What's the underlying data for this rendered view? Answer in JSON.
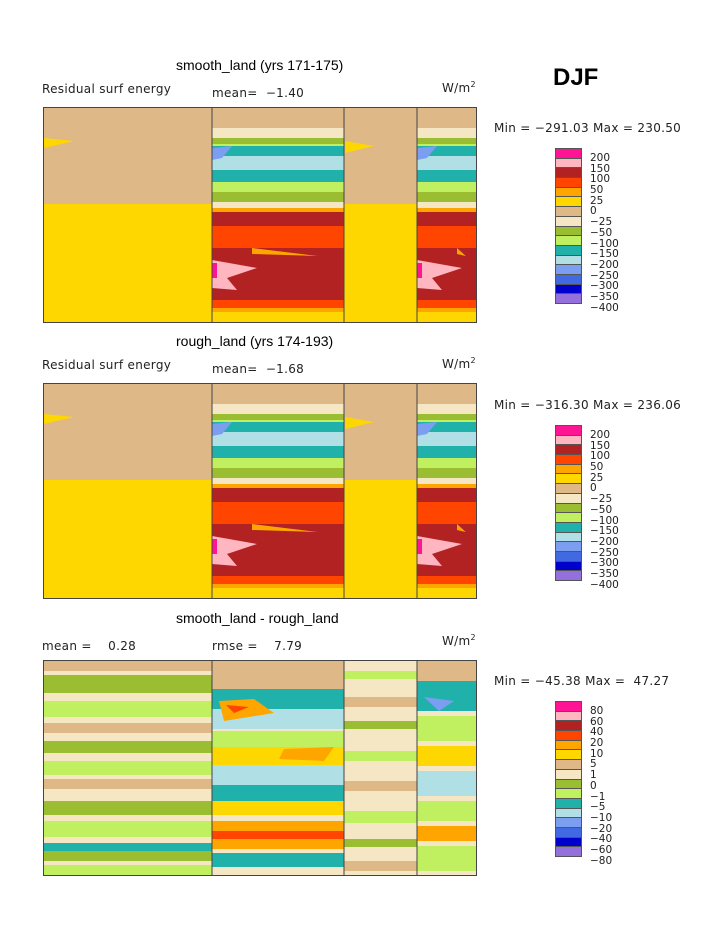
{
  "season": "DJF",
  "units_base": "W/m",
  "units_exp": "2",
  "panels": [
    {
      "title": "smooth_land (yrs 171-175)",
      "left_label": "Residual surf energy",
      "mid_label": "mean=  −1.40",
      "range": "Min = −291.03 Max = 230.50"
    },
    {
      "title": "rough_land (yrs 174-193)",
      "left_label": "Residual surf energy",
      "mid_label": "mean=  −1.68",
      "range": "Min = −316.30 Max = 236.06"
    },
    {
      "title": "smooth_land - rough_land",
      "left_label": "mean =    0.28",
      "mid_label": "rmse =    7.79",
      "range": "Min = −45.38 Max =  47.27"
    }
  ],
  "chart_data": {
    "type": "heatmap",
    "colors": [
      "#ff1493",
      "#ffb6c1",
      "#b22222",
      "#ff4500",
      "#ffa500",
      "#ffd700",
      "#deb887",
      "#f5e6c4",
      "#9abd32",
      "#c0f060",
      "#20b2aa",
      "#b0e0e6",
      "#7b9ef0",
      "#4169e1",
      "#0000cd",
      "#9370db"
    ],
    "levels_main": [
      "200",
      "150",
      "100",
      "50",
      "25",
      "0",
      "−25",
      "−50",
      "−100",
      "−150",
      "−200",
      "−250",
      "−300",
      "−350",
      "−400"
    ],
    "levels_diff": [
      "80",
      "60",
      "40",
      "20",
      "10",
      "5",
      "1",
      "0",
      "−1",
      "−5",
      "−10",
      "−20",
      "−40",
      "−60",
      "−80"
    ]
  }
}
